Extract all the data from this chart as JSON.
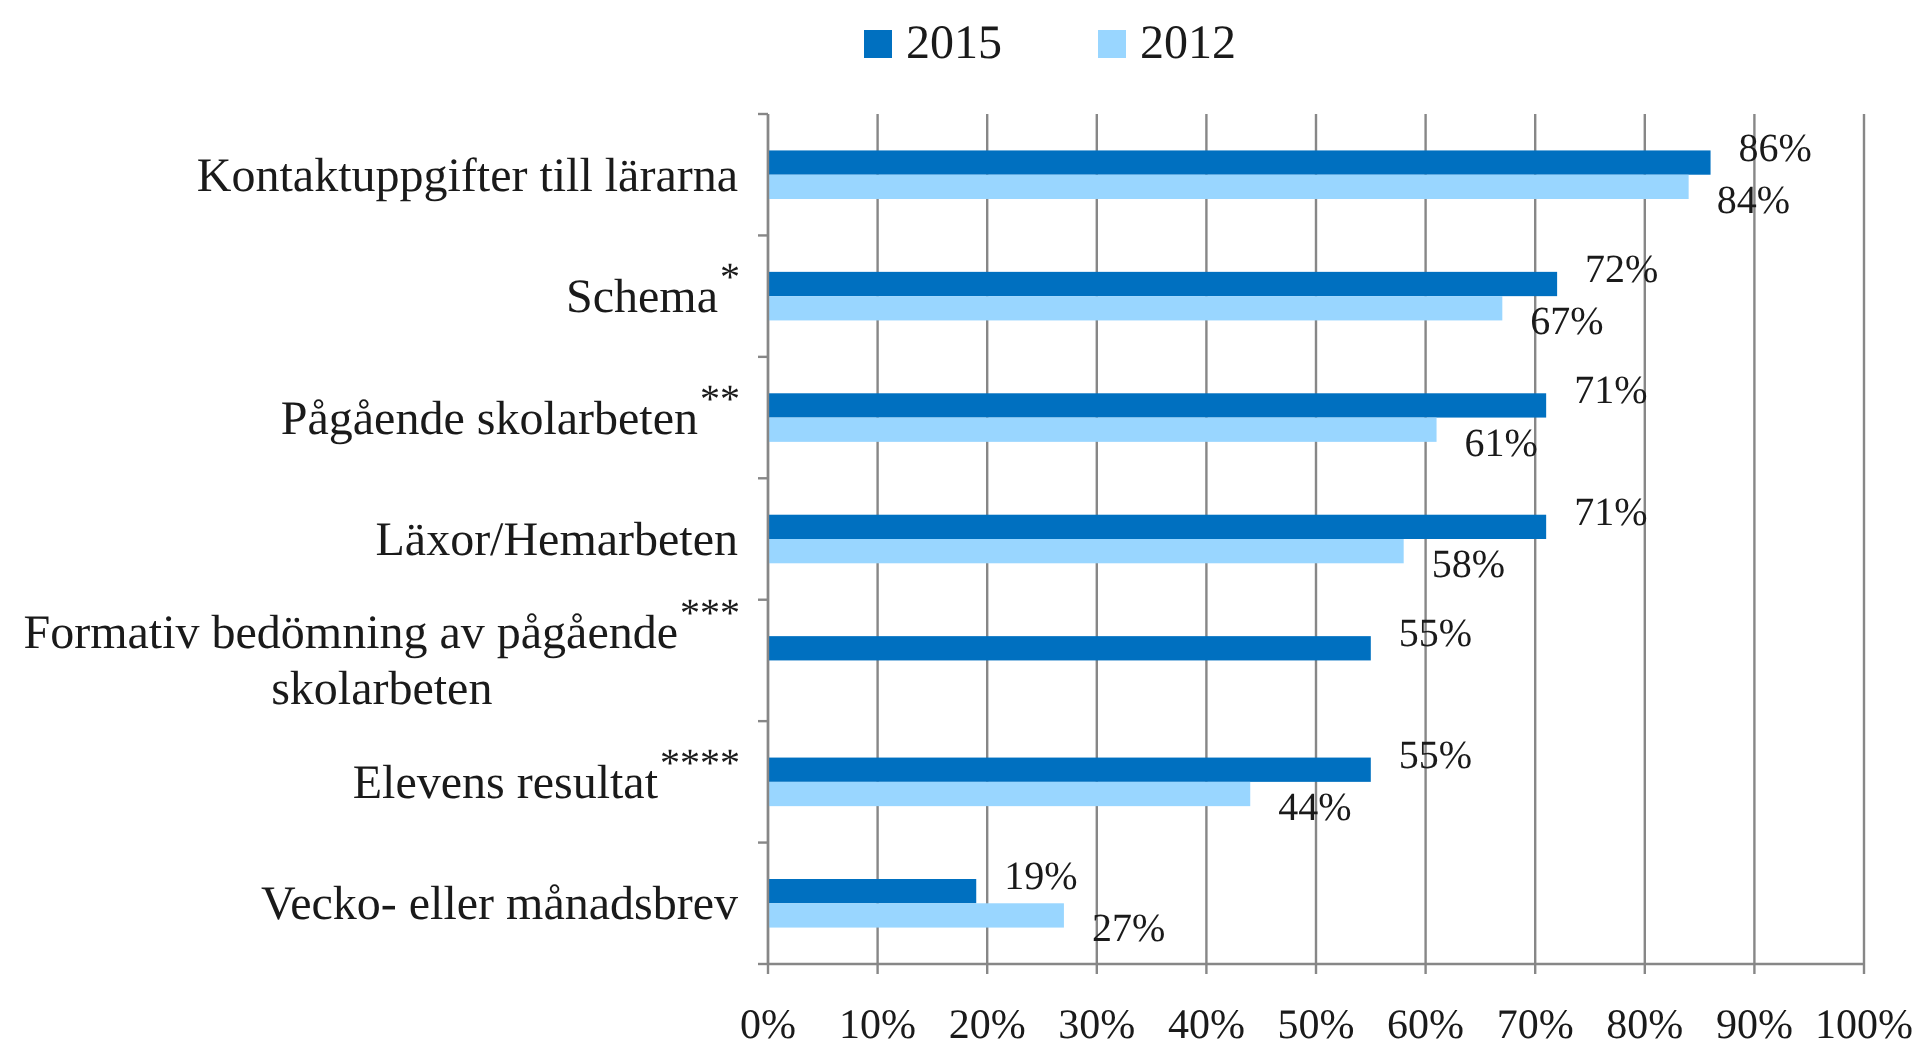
{
  "chart_data": {
    "type": "bar",
    "orientation": "horizontal",
    "categories": [
      "Kontaktuppgifter till lärarna",
      "Schema$^{*}$",
      "Pågående skolarbeten$^{**}$",
      "Läxor/Hemarbeten",
      "Formativ bedömning av pågående skolarbeten$^{***}$",
      "Elevens resultat$^{****}$",
      "Vecko- eller månadsbrev"
    ],
    "series": [
      {
        "name": "2015",
        "color": "#0070c0",
        "values": [
          86,
          72,
          71,
          71,
          55,
          55,
          19
        ],
        "value_labels": [
          "86%",
          "72%",
          "71%",
          "71%",
          "55%",
          "55%",
          "19%"
        ]
      },
      {
        "name": "2012",
        "color": "#99d6ff",
        "values": [
          84,
          67,
          61,
          58,
          null,
          44,
          27
        ],
        "value_labels": [
          "84%",
          "67%",
          "61%",
          "58%",
          null,
          "44%",
          "27%"
        ]
      }
    ],
    "xlim": [
      0,
      100
    ],
    "xticks": [
      {
        "value": 0,
        "label": "0%"
      },
      {
        "value": 10,
        "label": "10%"
      },
      {
        "value": 20,
        "label": "20%"
      },
      {
        "value": 30,
        "label": "30%"
      },
      {
        "value": 40,
        "label": "40%"
      },
      {
        "value": 50,
        "label": "50%"
      },
      {
        "value": 60,
        "label": "60%"
      },
      {
        "value": 70,
        "label": "70%"
      },
      {
        "value": 80,
        "label": "80%"
      },
      {
        "value": 90,
        "label": "90%"
      },
      {
        "value": 100,
        "label": "100%"
      }
    ],
    "grid": "x",
    "legend": "top"
  }
}
